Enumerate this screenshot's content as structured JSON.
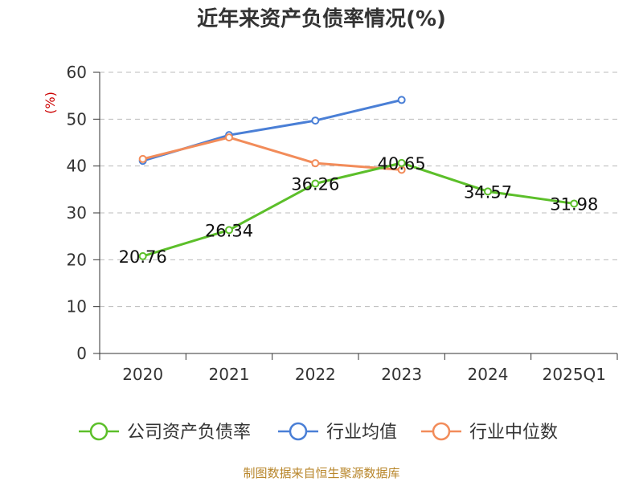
{
  "title": "近年来资产负债率情况(%)",
  "source": "制图数据来自恒生聚源数据库",
  "chart_data": {
    "type": "line",
    "title": "近年来资产负债率情况(%)",
    "y_unit_label": "(%)",
    "categories": [
      "2020",
      "2021",
      "2022",
      "2023",
      "2024",
      "2025Q1"
    ],
    "ylim": [
      0,
      60
    ],
    "y_ticks": [
      0,
      10,
      20,
      30,
      40,
      50,
      60
    ],
    "grid": true,
    "legend_position": "bottom",
    "series": [
      {
        "name": "公司资产负债率",
        "color": "#5cbf2a",
        "values": [
          20.76,
          26.34,
          36.26,
          40.65,
          34.57,
          31.98
        ],
        "labels": [
          "20.76",
          "26.34",
          "36.26",
          "40.65",
          "34.57",
          "31.98"
        ]
      },
      {
        "name": "行业均值",
        "color": "#4a7fd6",
        "values": [
          41.1,
          46.6,
          49.7,
          54.1,
          null,
          null
        ]
      },
      {
        "name": "行业中位数",
        "color": "#f28c5a",
        "values": [
          41.5,
          46.1,
          40.6,
          39.2,
          null,
          null
        ]
      }
    ]
  }
}
